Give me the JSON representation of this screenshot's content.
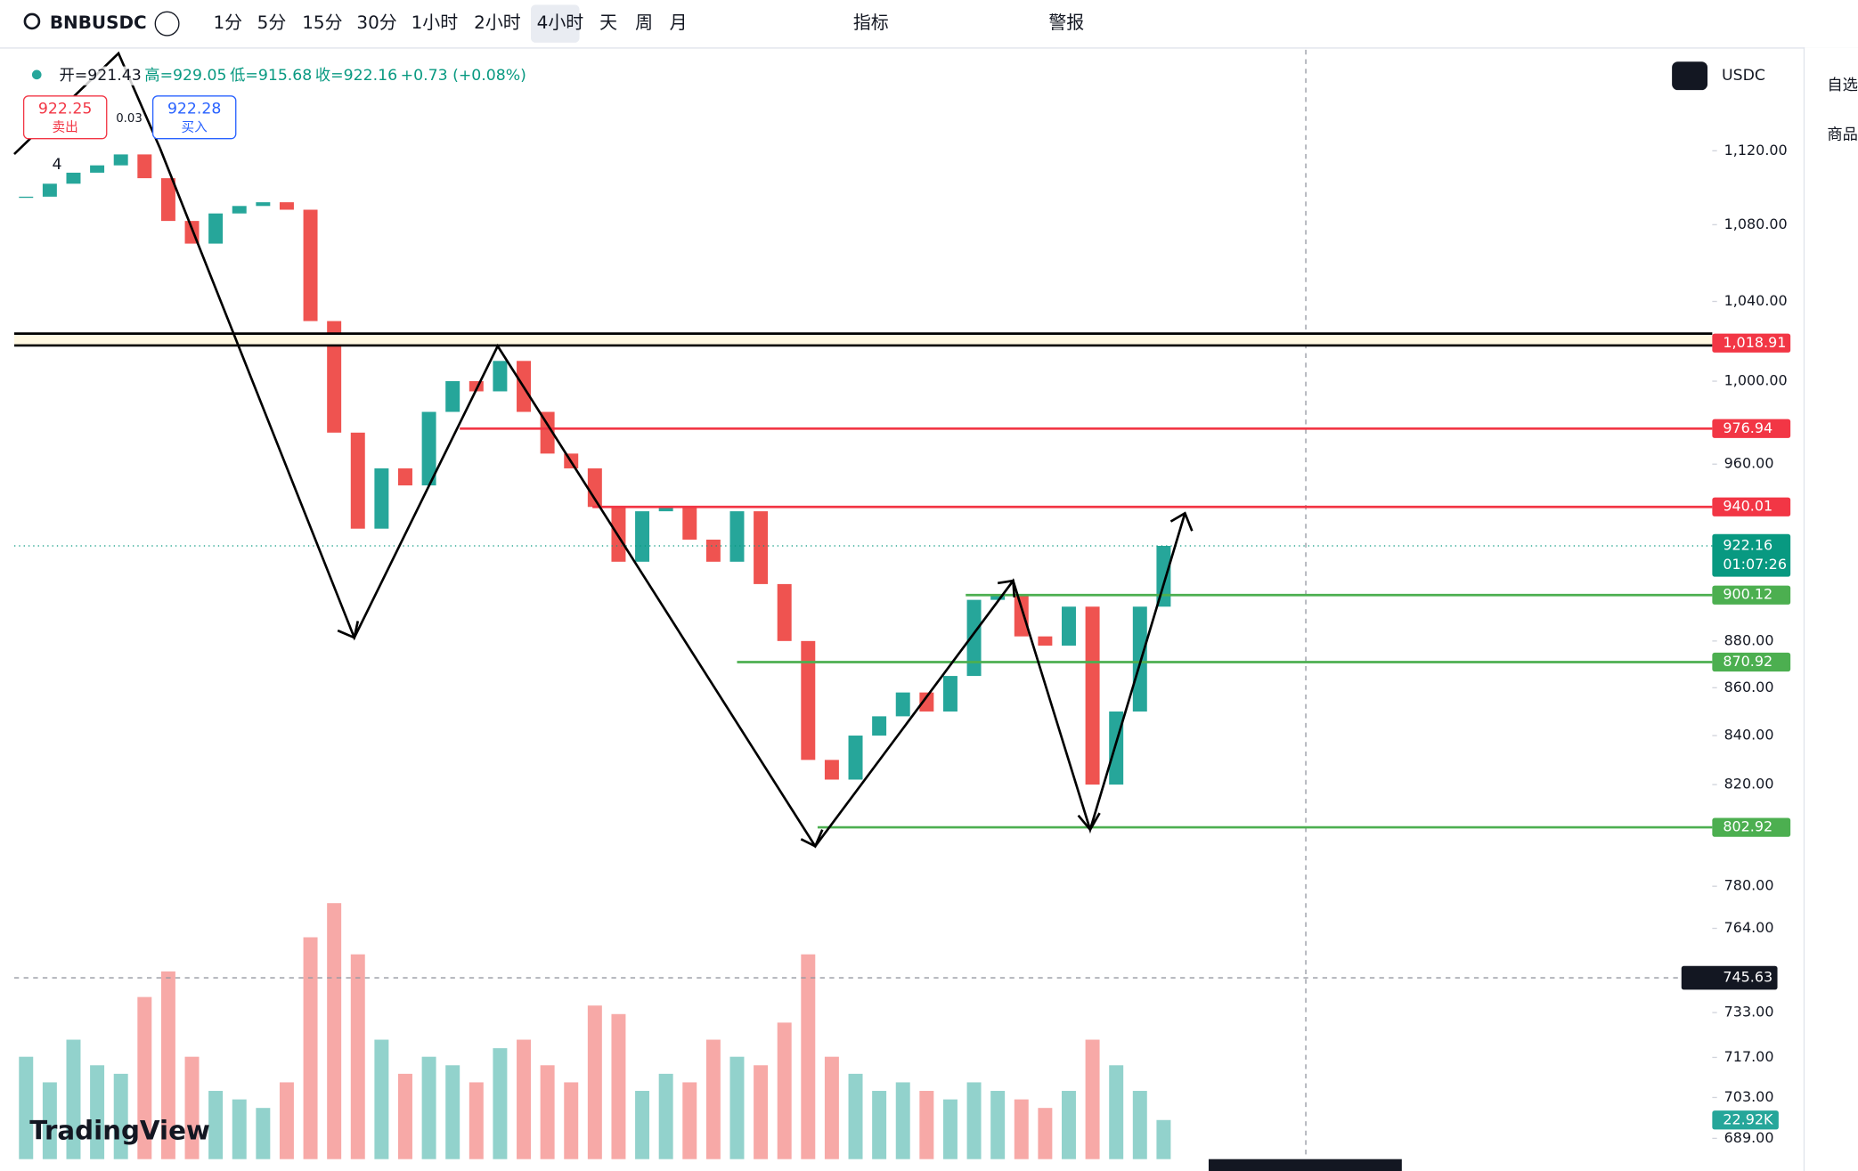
{
  "toolbar": {
    "symbol": "BNBUSDC",
    "intervals": [
      "1分",
      "5分",
      "15分",
      "30分",
      "1小时",
      "2小时",
      "4小时",
      "天",
      "周",
      "月"
    ],
    "active_interval": "4小时",
    "indicators": "指标",
    "alerts": "警报"
  },
  "ohlc": [
    "开=921.43",
    "高=929.05",
    "低=915.68",
    "收=922.16",
    "+0.73 (+0.08%)"
  ],
  "trade": {
    "sell_price": "922.25",
    "sell_label": "卖出",
    "spread": "0.03",
    "buy_price": "922.28",
    "buy_label": "买入"
  },
  "indicator_count": "4",
  "currency": "USDC",
  "sidebar": [
    "自选",
    "商品"
  ],
  "logo": "TradingView",
  "chart_data": {
    "type": "candlestick",
    "log_scale": true,
    "ylim": [
      682,
      1175
    ],
    "yticks": [
      {
        "value": 1120,
        "label": "1,120.00"
      },
      {
        "value": 1080,
        "label": "1,080.00"
      },
      {
        "value": 1040,
        "label": "1,040.00"
      },
      {
        "value": 1000,
        "label": "1,000.00"
      },
      {
        "value": 960,
        "label": "960.00"
      },
      {
        "value": 880,
        "label": "880.00"
      },
      {
        "value": 860,
        "label": "860.00"
      },
      {
        "value": 840,
        "label": "840.00"
      },
      {
        "value": 820,
        "label": "820.00"
      },
      {
        "value": 780,
        "label": "780.00"
      },
      {
        "value": 764,
        "label": "764.00"
      },
      {
        "value": 733,
        "label": "733.00"
      },
      {
        "value": 717,
        "label": "717.00"
      },
      {
        "value": 703,
        "label": "703.00"
      },
      {
        "value": 689,
        "label": "689.00"
      }
    ],
    "close": [
      1095,
      1102,
      1108,
      1112,
      1118,
      1105,
      1082,
      1070,
      1086,
      1090,
      1092,
      1088,
      1030,
      975,
      930,
      958,
      950,
      985,
      1000,
      995,
      1010,
      985,
      965,
      958,
      940,
      915,
      938,
      940,
      925,
      915,
      938,
      905,
      880,
      830,
      822,
      840,
      848,
      858,
      850,
      865,
      898,
      900,
      882,
      878,
      895,
      820,
      850,
      895,
      922.16
    ],
    "volume": [
      60,
      45,
      70,
      55,
      50,
      95,
      110,
      60,
      40,
      35,
      30,
      45,
      130,
      150,
      120,
      70,
      50,
      60,
      55,
      45,
      65,
      70,
      55,
      45,
      90,
      85,
      40,
      50,
      45,
      70,
      60,
      55,
      80,
      120,
      60,
      50,
      40,
      45,
      40,
      35,
      45,
      40,
      35,
      30,
      40,
      70,
      55,
      40,
      22.92
    ],
    "volume_label": "22.92K",
    "up_color": "#26a69a",
    "down_color": "#ef5350",
    "levels": [
      {
        "value": 1018.91,
        "label": "1,018.91",
        "color": "#f23645"
      },
      {
        "value": 976.94,
        "label": "976.94",
        "color": "#f23645"
      },
      {
        "value": 940.01,
        "label": "940.01",
        "color": "#f23645"
      },
      {
        "value": 900.12,
        "label": "900.12",
        "color": "#4caf50"
      },
      {
        "value": 870.92,
        "label": "870.92",
        "color": "#4caf50"
      },
      {
        "value": 802.92,
        "label": "802.92",
        "color": "#4caf50"
      }
    ],
    "last_price": {
      "value": 922.16,
      "label": "922.16",
      "countdown": "01:07:26",
      "color": "#089981"
    },
    "crosshair": {
      "value": 745.63,
      "label": "745.63"
    }
  }
}
